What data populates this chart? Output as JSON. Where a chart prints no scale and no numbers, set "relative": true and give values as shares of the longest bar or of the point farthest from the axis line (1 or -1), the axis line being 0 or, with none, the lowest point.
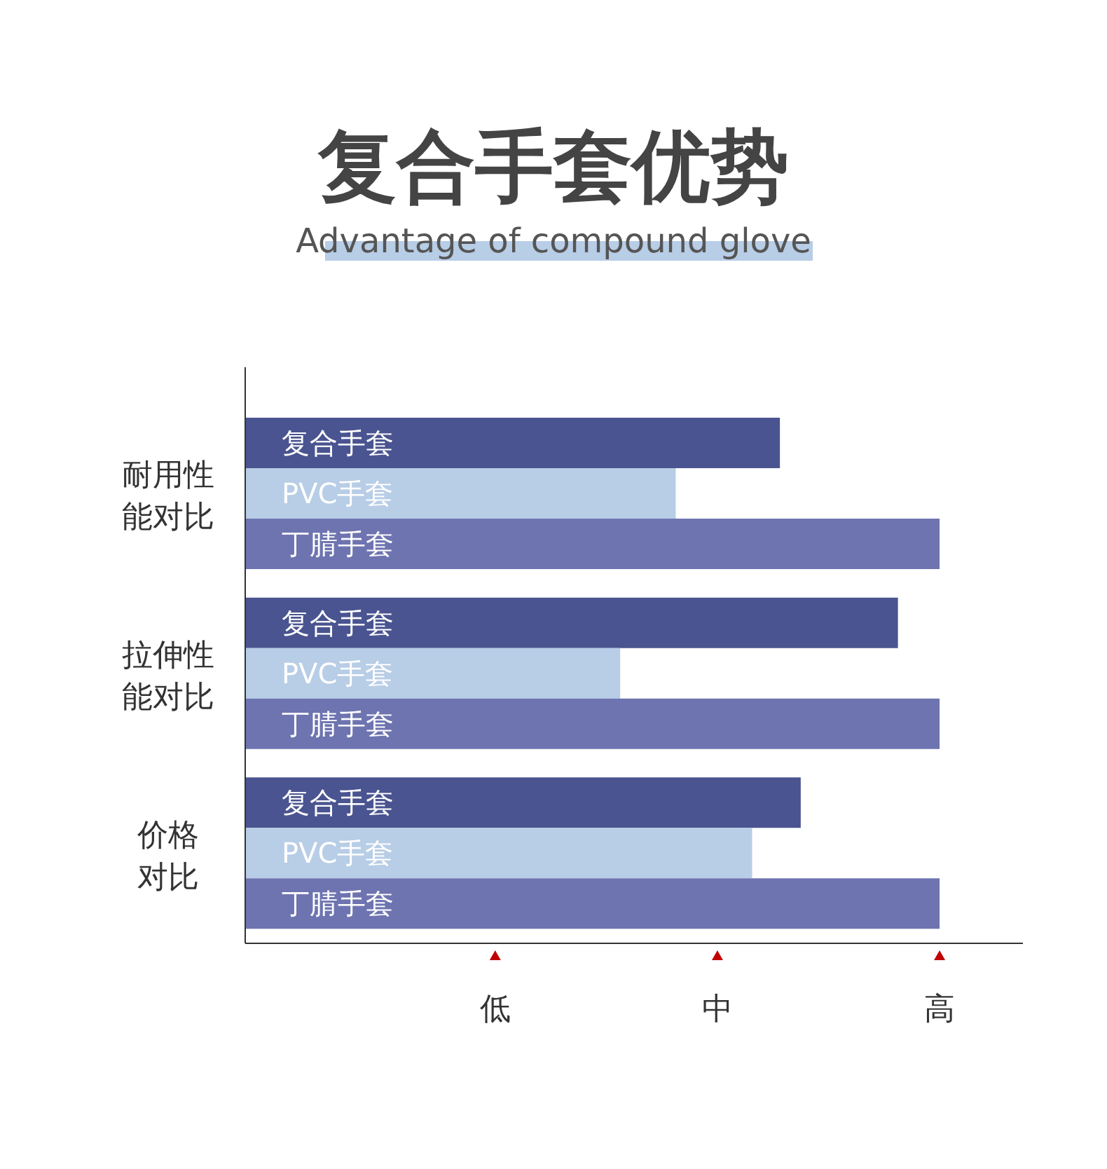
{
  "chart_data": {
    "type": "bar",
    "title": "复合手套优势",
    "subtitle": "Advantage of compound glove",
    "orientation": "horizontal",
    "relative": true,
    "categories": [
      "耐用性能对比",
      "拉伸性能对比",
      "价格对比"
    ],
    "series": [
      {
        "name": "复合手套",
        "color": "#4a5490",
        "values": [
          0.77,
          0.94,
          0.8
        ]
      },
      {
        "name": "PVC手套",
        "color": "#b8cde6",
        "values": [
          0.62,
          0.54,
          0.73
        ]
      },
      {
        "name": "丁腈手套",
        "color": "#6e74b0",
        "values": [
          1,
          1,
          1
        ]
      }
    ],
    "annotations": [
      "低",
      "中",
      "高"
    ]
  }
}
